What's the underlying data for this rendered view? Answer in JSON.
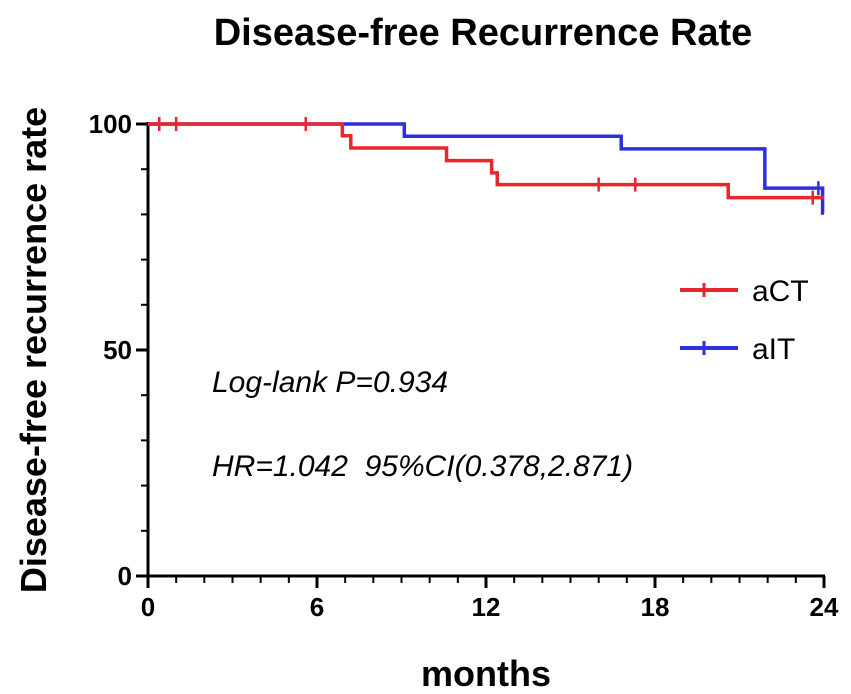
{
  "chart_data": {
    "type": "line",
    "subtype": "kaplan-meier-step",
    "title": "Disease-free Recurrence Rate",
    "xlabel": "months",
    "ylabel": "Disease-free recurrence rate",
    "xlim": [
      0,
      24
    ],
    "ylim": [
      0,
      100
    ],
    "xticks": [
      0,
      6,
      12,
      18,
      24
    ],
    "xtick_labels": [
      "0",
      "6",
      "12",
      "18",
      "24"
    ],
    "yticks": [
      0,
      50,
      100
    ],
    "ytick_labels": [
      "0",
      "50",
      "100"
    ],
    "legend_position": "right",
    "series": [
      {
        "name": "aCT",
        "color": "#e8262e",
        "steps": [
          {
            "x": 0,
            "y": 100
          },
          {
            "x": 6.9,
            "y": 97.4
          },
          {
            "x": 7.2,
            "y": 94.7
          },
          {
            "x": 10.6,
            "y": 91.9
          },
          {
            "x": 12.2,
            "y": 89.2
          },
          {
            "x": 12.4,
            "y": 86.6
          },
          {
            "x": 20.6,
            "y": 83.7
          },
          {
            "x": 24,
            "y": 83.7
          }
        ],
        "censored": [
          {
            "x": 0.4,
            "y": 100
          },
          {
            "x": 1.0,
            "y": 100
          },
          {
            "x": 5.6,
            "y": 100
          },
          {
            "x": 16.0,
            "y": 86.6
          },
          {
            "x": 17.3,
            "y": 86.6
          },
          {
            "x": 23.6,
            "y": 83.7
          }
        ]
      },
      {
        "name": "aIT",
        "color": "#2e2ee0",
        "steps": [
          {
            "x": 0,
            "y": 100
          },
          {
            "x": 6.9,
            "y": 100
          },
          {
            "x": 9.1,
            "y": 97.3
          },
          {
            "x": 16.8,
            "y": 94.5
          },
          {
            "x": 21.9,
            "y": 85.8
          },
          {
            "x": 23.95,
            "y": 80.3
          },
          {
            "x": 24,
            "y": 80.3
          }
        ],
        "censored": [
          {
            "x": 23.8,
            "y": 85.8
          },
          {
            "x": 23.95,
            "y": 82.0
          }
        ]
      }
    ],
    "annotations": [
      {
        "text": "Log-lank P=0.934"
      },
      {
        "text": "HR=1.042  95%CI(0.378,2.871)"
      }
    ]
  }
}
